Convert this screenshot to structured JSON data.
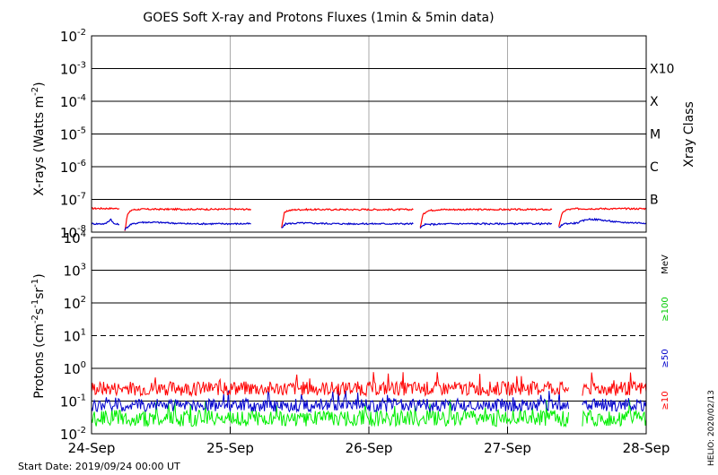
{
  "chart_data": [
    {
      "type": "line",
      "panel": "xray",
      "title": "GOES Soft X-ray and Protons Fluxes   (1min & 5min data)",
      "ylabel": "X-rays (Watts m⁻²)",
      "yscale": "log",
      "ylim": [
        1e-08,
        0.01
      ],
      "y_ticks": [
        {
          "value": 0.01,
          "base": "10",
          "exp": "-2"
        },
        {
          "value": 0.001,
          "base": "10",
          "exp": "-3"
        },
        {
          "value": 0.0001,
          "base": "10",
          "exp": "-4"
        },
        {
          "value": 1e-05,
          "base": "10",
          "exp": "-5"
        },
        {
          "value": 1e-06,
          "base": "10",
          "exp": "-6"
        },
        {
          "value": 1e-07,
          "base": "10",
          "exp": "-7"
        },
        {
          "value": 1e-08,
          "base": "10",
          "exp": "-8"
        }
      ],
      "right_axis_label": "Xray Class",
      "class_labels": [
        {
          "label": "X10",
          "value": 0.001
        },
        {
          "label": "X",
          "value": 0.0001
        },
        {
          "label": "M",
          "value": 1e-05
        },
        {
          "label": "C",
          "value": 1e-06
        },
        {
          "label": "B",
          "value": 1e-07
        }
      ],
      "grid": true,
      "series": [
        {
          "color": "#ff0000",
          "segments": [
            {
              "x": [
                0.0,
                0.2
              ],
              "y": [
                5.3e-08,
                5.3e-08
              ]
            },
            {
              "x": [
                0.24,
                0.26,
                0.29,
                0.35,
                1.15
              ],
              "y": [
                1.1e-08,
                3.5e-08,
                4.8e-08,
                5e-08,
                5e-08
              ]
            },
            {
              "x": [
                1.37,
                1.39,
                1.42,
                1.48,
                2.32
              ],
              "y": [
                1.4e-08,
                3.8e-08,
                4.6e-08,
                4.9e-08,
                4.9e-08
              ]
            },
            {
              "x": [
                2.37,
                2.39,
                2.42,
                2.5,
                3.32
              ],
              "y": [
                1.4e-08,
                3.4e-08,
                4.5e-08,
                4.9e-08,
                4.9e-08
              ]
            },
            {
              "x": [
                3.37,
                3.39,
                3.42,
                3.5,
                4.0
              ],
              "y": [
                1.4e-08,
                3.5e-08,
                4.8e-08,
                5.2e-08,
                5.2e-08
              ]
            }
          ]
        },
        {
          "color": "#0000cc",
          "segments": [
            {
              "x": [
                0.0,
                0.1,
                0.14,
                0.16,
                0.2
              ],
              "y": [
                1.8e-08,
                1.8e-08,
                2.5e-08,
                1.8e-08,
                1.7e-08
              ]
            },
            {
              "x": [
                0.24,
                0.28,
                0.35,
                0.45,
                0.7,
                1.15
              ],
              "y": [
                1.2e-08,
                1.7e-08,
                2e-08,
                2e-08,
                1.8e-08,
                1.8e-08
              ]
            },
            {
              "x": [
                1.37,
                1.4,
                1.5,
                1.8,
                2.32
              ],
              "y": [
                1.3e-08,
                1.8e-08,
                1.9e-08,
                1.8e-08,
                1.8e-08
              ]
            },
            {
              "x": [
                2.37,
                2.4,
                2.6,
                3.32
              ],
              "y": [
                1.3e-08,
                1.7e-08,
                1.8e-08,
                1.8e-08
              ]
            },
            {
              "x": [
                3.37,
                3.4,
                3.5,
                3.58,
                3.66,
                3.8,
                4.0
              ],
              "y": [
                1.3e-08,
                1.8e-08,
                1.9e-08,
                2.5e-08,
                2.4e-08,
                2e-08,
                1.9e-08
              ]
            }
          ]
        }
      ]
    },
    {
      "type": "line",
      "panel": "protons",
      "ylabel": "Protons (cm⁻²s⁻¹sr⁻¹)",
      "yscale": "log",
      "ylim": [
        0.01,
        10000
      ],
      "y_ticks": [
        {
          "value": 10000,
          "base": "10",
          "exp": "4"
        },
        {
          "value": 1000,
          "base": "10",
          "exp": "3"
        },
        {
          "value": 100,
          "base": "10",
          "exp": "2"
        },
        {
          "value": 10,
          "base": "10",
          "exp": "1"
        },
        {
          "value": 1,
          "base": "10",
          "exp": "0"
        },
        {
          "value": 0.1,
          "base": "10",
          "exp": "-1"
        },
        {
          "value": 0.01,
          "base": "10",
          "exp": "-2"
        }
      ],
      "threshold": {
        "value": 10,
        "style": "dashed"
      },
      "right_labels": [
        "MeV",
        "≥100",
        "≥50",
        "≥10"
      ],
      "x_ticks": [
        "24-Sep",
        "25-Sep",
        "26-Sep",
        "27-Sep",
        "28-Sep"
      ],
      "xlim": [
        0,
        4
      ],
      "grid": true,
      "gaps": [
        [
          3.44,
          3.54
        ]
      ],
      "series": [
        {
          "name": "≥10",
          "color": "#ff0000",
          "level": 0.24,
          "noise": 0.22
        },
        {
          "name": "≥50",
          "color": "#0000cc",
          "level": 0.075,
          "noise": 0.2
        },
        {
          "name": "≥100",
          "color": "#00ee00",
          "level": 0.03,
          "noise": 0.25
        }
      ]
    }
  ],
  "footer": {
    "start_date": "Start Date: 2019/09/24 00:00 UT",
    "credit": "HELIO: 2020/02/13"
  }
}
